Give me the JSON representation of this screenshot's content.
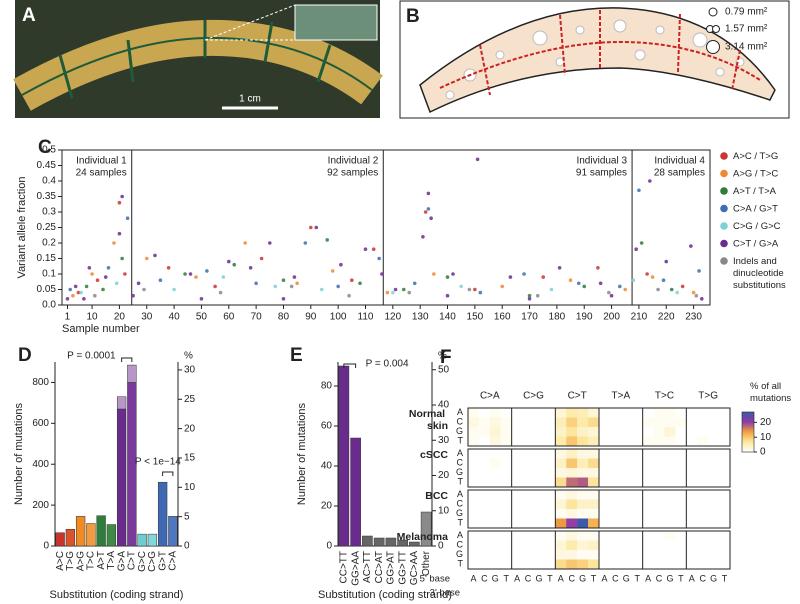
{
  "panel_a": {
    "label": "A",
    "scale_bar": "1 cm"
  },
  "panel_b": {
    "label": "B",
    "legend": [
      "0.79 mm²",
      "1.57 mm²",
      "3.14 mm²"
    ]
  },
  "chart_data": [
    {
      "type": "scatter",
      "panel_label": "C",
      "ylabel": "Variant allele fraction",
      "xlabel": "Sample number",
      "xlim": [
        -1,
        236
      ],
      "ylim": [
        0,
        0.5
      ],
      "xticks": [
        1,
        10,
        20,
        30,
        40,
        50,
        60,
        70,
        80,
        90,
        100,
        110,
        120,
        130,
        140,
        150,
        160,
        170,
        180,
        190,
        200,
        210,
        220,
        230
      ],
      "yticks": [
        {
          "value": 0,
          "label": "0.0"
        },
        0.05,
        0.1,
        0.15,
        0.2,
        0.25,
        0.3,
        0.35,
        0.4,
        0.45,
        0.5
      ],
      "dividers": [
        24.5,
        116.5,
        207.5
      ],
      "groups": [
        {
          "name": "Individual 1",
          "samples": "24 samples"
        },
        {
          "name": "Individual 2",
          "samples": "92 samples"
        },
        {
          "name": "Individual 3",
          "samples": "91 samples"
        },
        {
          "name": "Individual 4",
          "samples": "28 samples"
        }
      ],
      "series": [
        {
          "name": "A>C / T>G",
          "color": "#cc3333",
          "x": [
            5,
            12,
            20,
            22,
            38,
            55,
            72,
            90,
            105,
            113,
            132,
            150,
            175,
            195,
            213,
            226
          ],
          "y": [
            0.04,
            0.08,
            0.33,
            0.1,
            0.12,
            0.06,
            0.15,
            0.25,
            0.08,
            0.18,
            0.3,
            0.05,
            0.09,
            0.12,
            0.1,
            0.06
          ]
        },
        {
          "name": "A>G / T>C",
          "color": "#ee8833",
          "x": [
            3,
            10,
            18,
            30,
            48,
            66,
            85,
            98,
            118,
            135,
            160,
            185,
            205,
            215,
            230
          ],
          "y": [
            0.03,
            0.1,
            0.2,
            0.15,
            0.09,
            0.2,
            0.07,
            0.11,
            0.04,
            0.1,
            0.06,
            0.08,
            0.05,
            0.09,
            0.04
          ]
        },
        {
          "name": "A>T / T>A",
          "color": "#2e7d3a",
          "x": [
            8,
            14,
            21,
            44,
            62,
            80,
            96,
            108,
            124,
            140,
            170,
            190,
            211,
            222
          ],
          "y": [
            0.06,
            0.05,
            0.15,
            0.1,
            0.13,
            0.08,
            0.21,
            0.07,
            0.05,
            0.09,
            0.03,
            0.06,
            0.2,
            0.05
          ]
        },
        {
          "name": "C>A / G>T",
          "color": "#3e6db3",
          "x": [
            2,
            16,
            23,
            35,
            52,
            70,
            88,
            100,
            115,
            128,
            133,
            152,
            168,
            188,
            203,
            210,
            219,
            232
          ],
          "y": [
            0.05,
            0.12,
            0.28,
            0.08,
            0.11,
            0.07,
            0.2,
            0.06,
            0.15,
            0.07,
            0.31,
            0.04,
            0.1,
            0.07,
            0.06,
            0.37,
            0.08,
            0.11
          ]
        },
        {
          "name": "C>G / G>C",
          "color": "#7fd0d4",
          "x": [
            6,
            19,
            40,
            58,
            77,
            94,
            120,
            145,
            178,
            208,
            224
          ],
          "y": [
            0.04,
            0.07,
            0.05,
            0.09,
            0.06,
            0.05,
            0.04,
            0.06,
            0.05,
            0.08,
            0.04
          ]
        },
        {
          "name": "C>T / G>A",
          "color": "#6b2c8f",
          "x": [
            1,
            4,
            9,
            15,
            20,
            21,
            27,
            33,
            46,
            60,
            68,
            75,
            84,
            92,
            101,
            110,
            116,
            121,
            131,
            133,
            134,
            142,
            151,
            163,
            181,
            196,
            209,
            214,
            220,
            229,
            7,
            25,
            50,
            80,
            140,
            170,
            200,
            233
          ],
          "y": [
            0.02,
            0.06,
            0.12,
            0.09,
            0.23,
            0.35,
            0.07,
            0.16,
            0.1,
            0.14,
            0.12,
            0.2,
            0.09,
            0.25,
            0.13,
            0.18,
            0.1,
            0.05,
            0.22,
            0.36,
            0.28,
            0.1,
            0.47,
            0.09,
            0.12,
            0.07,
            0.18,
            0.4,
            0.14,
            0.19,
            0.02,
            0.03,
            0.02,
            0.02,
            0.03,
            0.02,
            0.03,
            0.02
          ]
        },
        {
          "name": "Indels and dinucleotide substitutions",
          "color": "#888888",
          "x": [
            11,
            29,
            57,
            83,
            104,
            126,
            148,
            173,
            199,
            217,
            231
          ],
          "y": [
            0.03,
            0.05,
            0.04,
            0.06,
            0.03,
            0.04,
            0.05,
            0.03,
            0.04,
            0.05,
            0.03
          ]
        }
      ]
    },
    {
      "type": "bar",
      "panel_label": "D",
      "ylabel": "Number of mutations",
      "y2label": "%",
      "xlabel": "Substitution (coding strand)",
      "categories": [
        "A>C",
        "T>G",
        "A>G",
        "T>C",
        "A>T",
        "T>A",
        "G>A",
        "C>T",
        "G>C",
        "C>G",
        "G>T",
        "C>A"
      ],
      "series": [
        {
          "values": [
            65,
            82,
            145,
            110,
            148,
            105,
            670,
            800,
            58,
            58,
            312,
            145
          ],
          "colors": [
            "#c8332b",
            "#d9532e",
            "#f08a24",
            "#f29a3c",
            "#2f7d3b",
            "#3f8b45",
            "#6a2c8c",
            "#7a3a9c",
            "#6fcdd1",
            "#84d6d9",
            "#3f69b3",
            "#4f78be"
          ]
        },
        {
          "values": [
            null,
            null,
            null,
            null,
            null,
            null,
            60,
            85,
            null,
            null,
            null,
            null
          ],
          "color": "#b996c8"
        }
      ],
      "ylim": [
        0,
        900
      ],
      "yticks": [
        0,
        200,
        400,
        600,
        800
      ],
      "y2lim": [
        0,
        31.35
      ],
      "y2ticks": [
        0,
        5,
        10,
        15,
        20,
        25,
        30
      ],
      "annotations": [
        "P = 0.0001",
        "P < 1e−14"
      ]
    },
    {
      "type": "bar",
      "panel_label": "E",
      "ylabel": "Number of mutations",
      "y2label": "%",
      "xlabel": "Substitution (coding strand)",
      "categories": [
        "CC>TT",
        "GG>AA",
        "AC>TT",
        "CC>AT",
        "GG>AT",
        "GG>TT",
        "GC>AA",
        "Other"
      ],
      "values": [
        90,
        54,
        5,
        4,
        4,
        3,
        2,
        17
      ],
      "colors": [
        "#6a2c8c",
        "#6a2c8c",
        "#666666",
        "#666666",
        "#666666",
        "#666666",
        "#666666",
        "#8a8a8a"
      ],
      "ylim": [
        0,
        92
      ],
      "yticks": [
        0,
        20,
        40,
        60,
        80
      ],
      "y2lim": [
        0,
        52.2
      ],
      "y2ticks": [
        0,
        10,
        20,
        30,
        40,
        50
      ],
      "annotations": [
        "P = 0.004"
      ]
    },
    {
      "type": "heatmap",
      "panel_label": "F",
      "groups": [
        "Normal skin",
        "cSCC",
        "BCC",
        "Melanoma"
      ],
      "substitutions": [
        "C>A",
        "C>G",
        "C>T",
        "T>A",
        "T>C",
        "T>G"
      ],
      "bases_5": [
        "A",
        "C",
        "G",
        "T"
      ],
      "bases_3": [
        "A",
        "C",
        "G",
        "T"
      ],
      "label_5": "5' base",
      "label_3": "3' base",
      "colorbar_title": "% of all mutations",
      "clim": [
        0,
        27
      ],
      "cticks": [
        0,
        10,
        20
      ],
      "colorscale": [
        "#ffffff",
        "#fce8a0",
        "#f4a23c",
        "#8e3aa8",
        "#3b5aa8"
      ],
      "values": [
        [
          [
            1,
            0,
            1,
            0,
            0,
            0,
            0,
            0,
            3,
            6,
            5,
            3,
            0,
            0,
            0,
            0,
            0,
            1,
            1,
            0,
            0,
            0,
            0,
            0
          ],
          [
            2,
            1,
            2,
            1,
            0,
            0,
            0,
            0,
            5,
            9,
            6,
            8,
            0,
            0,
            0,
            0,
            1,
            1,
            1,
            1,
            0,
            0,
            0,
            0
          ],
          [
            1,
            1,
            3,
            1,
            0,
            0,
            0,
            0,
            4,
            7,
            4,
            3,
            0,
            0,
            0,
            0,
            0,
            1,
            3,
            0,
            0,
            0,
            0,
            0
          ],
          [
            1,
            0,
            2,
            1,
            0,
            0,
            0,
            0,
            6,
            10,
            7,
            5,
            0,
            0,
            0,
            0,
            1,
            1,
            1,
            0,
            0,
            1,
            0,
            0
          ]
        ],
        [
          [
            0,
            0,
            0,
            0,
            0,
            0,
            0,
            0,
            2,
            4,
            2,
            2,
            0,
            0,
            0,
            0,
            0,
            0,
            0,
            0,
            0,
            0,
            0,
            0
          ],
          [
            0,
            0,
            1,
            0,
            0,
            0,
            0,
            0,
            4,
            10,
            5,
            8,
            0,
            0,
            0,
            0,
            0,
            0,
            0,
            0,
            0,
            0,
            0,
            0
          ],
          [
            0,
            0,
            0,
            0,
            0,
            0,
            0,
            0,
            2,
            3,
            2,
            2,
            0,
            0,
            0,
            0,
            0,
            0,
            0,
            0,
            0,
            0,
            0,
            0
          ],
          [
            0,
            0,
            0,
            0,
            0,
            0,
            0,
            0,
            8,
            17,
            18,
            7,
            0,
            0,
            0,
            0,
            0,
            0,
            0,
            0,
            0,
            0,
            0,
            0
          ]
        ],
        [
          [
            0,
            0,
            0,
            0,
            0,
            0,
            0,
            0,
            1,
            2,
            1,
            1,
            0,
            0,
            0,
            0,
            0,
            0,
            0,
            0,
            0,
            0,
            0,
            0
          ],
          [
            0,
            0,
            0,
            0,
            0,
            0,
            0,
            0,
            3,
            7,
            4,
            4,
            0,
            0,
            0,
            0,
            0,
            0,
            0,
            0,
            0,
            0,
            0,
            0
          ],
          [
            0,
            0,
            0,
            0,
            0,
            0,
            0,
            0,
            1,
            2,
            1,
            1,
            0,
            0,
            0,
            0,
            0,
            0,
            0,
            0,
            0,
            0,
            0,
            0
          ],
          [
            0,
            0,
            0,
            0,
            0,
            0,
            0,
            0,
            14,
            20,
            27,
            12,
            0,
            0,
            0,
            0,
            0,
            0,
            0,
            0,
            0,
            0,
            0,
            0
          ]
        ],
        [
          [
            0,
            0,
            0,
            0,
            0,
            0,
            0,
            0,
            1,
            2,
            1,
            1,
            0,
            0,
            0,
            0,
            0,
            0,
            1,
            0,
            0,
            0,
            0,
            0
          ],
          [
            0,
            0,
            0,
            0,
            0,
            0,
            0,
            0,
            3,
            6,
            3,
            4,
            0,
            0,
            0,
            0,
            0,
            0,
            0,
            0,
            0,
            0,
            0,
            0
          ],
          [
            0,
            0,
            0,
            0,
            0,
            0,
            0,
            0,
            2,
            2,
            1,
            1,
            0,
            0,
            0,
            0,
            0,
            0,
            0,
            0,
            0,
            0,
            0,
            0
          ],
          [
            0,
            0,
            0,
            0,
            0,
            0,
            0,
            0,
            8,
            10,
            9,
            7,
            0,
            0,
            0,
            0,
            0,
            0,
            0,
            0,
            0,
            0,
            0,
            0
          ]
        ]
      ]
    }
  ]
}
